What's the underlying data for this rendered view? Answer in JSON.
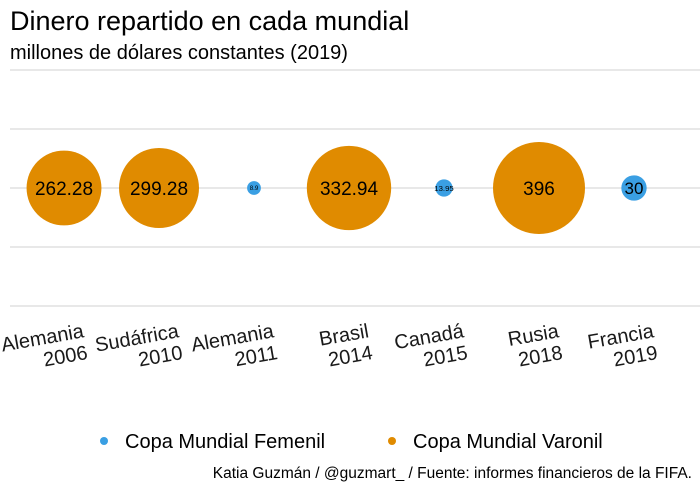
{
  "chart_data": {
    "type": "scatter",
    "title": "Dinero repartido en cada mundial",
    "subtitle": "millones de dólares constantes (2019)",
    "xlabel": "",
    "ylabel": "",
    "grid": true,
    "legend_position": "bottom",
    "categories": [
      [
        "Alemania",
        "2006"
      ],
      [
        "Sudáfrica",
        "2010"
      ],
      [
        "Alemania",
        "2011"
      ],
      [
        "Brasil",
        "2014"
      ],
      [
        "Canadá",
        "2015"
      ],
      [
        "Rusia",
        "2018"
      ],
      [
        "Francia",
        "2019"
      ]
    ],
    "points": [
      {
        "category": 0,
        "value": 262.28,
        "label": "262.28",
        "series": 1
      },
      {
        "category": 1,
        "value": 299.28,
        "label": "299.28",
        "series": 1
      },
      {
        "category": 2,
        "value": 8.9,
        "label": "8.9",
        "series": 0
      },
      {
        "category": 3,
        "value": 332.94,
        "label": "332.94",
        "series": 1
      },
      {
        "category": 4,
        "value": 13.95,
        "label": "13.95",
        "series": 0
      },
      {
        "category": 5,
        "value": 396,
        "label": "396",
        "series": 1
      },
      {
        "category": 6,
        "value": 30,
        "label": "30",
        "series": 0
      }
    ],
    "series": [
      {
        "name": "Copa Mundial Femenil",
        "color": "#3a9fe3"
      },
      {
        "name": "Copa Mundial Varonil",
        "color": "#e08b00"
      }
    ],
    "caption": "Katia Guzmán / @guzmart_ / Fuente: informes financieros de la FIFA."
  }
}
